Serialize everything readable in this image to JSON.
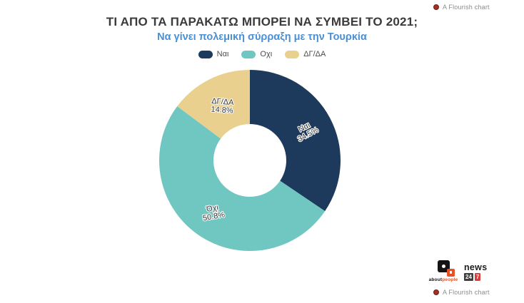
{
  "flourish_badge": {
    "label": "A Flourish chart"
  },
  "header": {
    "title": "ΤΙ ΑΠΟ ΤΑ ΠΑΡΑΚΑΤΩ ΜΠΟΡΕΙ ΝΑ ΣΥΜΒΕΙ ΤΟ 2021;",
    "subtitle": "Να γίνει πολεμική σύρραξη με την Τουρκία"
  },
  "chart_data": {
    "type": "pie",
    "subtype": "donut",
    "title": "ΤΙ ΑΠΟ ΤΑ ΠΑΡΑΚΑΤΩ ΜΠΟΡΕΙ ΝΑ ΣΥΜΒΕΙ ΤΟ 2021;",
    "subtitle": "Να γίνει πολεμική σύρραξη με την Τουρκία",
    "legend_position": "top",
    "start_angle_deg": 0,
    "clockwise": true,
    "inner_radius_ratio": 0.4,
    "categories": [
      "Ναι",
      "Όχι",
      "ΔΓ/ΔΑ"
    ],
    "values": [
      34.5,
      50.8,
      14.8
    ],
    "slices": [
      {
        "label": "Ναι",
        "legend_label": "Ναι",
        "value": 34.5,
        "display": "34.5%",
        "color": "#1d3a5c",
        "label_radius": 89,
        "label_rotation": -28
      },
      {
        "label": "Όχι",
        "legend_label": "Οχι",
        "value": 50.8,
        "display": "50.8%",
        "color": "#70c7c2",
        "label_radius": 89,
        "label_rotation": -10
      },
      {
        "label": "ΔΓ/ΔΑ",
        "legend_label": "ΔΓ/ΔΑ",
        "value": 14.8,
        "display": "14.8%",
        "color": "#e9d08f",
        "label_radius": 86,
        "label_rotation": 4
      }
    ]
  },
  "branding": {
    "aboutpeople": {
      "part1": "about",
      "part2": "people"
    },
    "news247": {
      "word": "news",
      "box1": "24",
      "box2": "7"
    }
  },
  "colors": {
    "title": "#3b3b3b",
    "subtitle": "#4a8fd3",
    "badge_dot": "#a03123",
    "badge_text": "#8c8c8c",
    "aboutpeople_orange": "#e85123",
    "news_red": "#e03b3b",
    "news_dark": "#3f3f3e"
  }
}
